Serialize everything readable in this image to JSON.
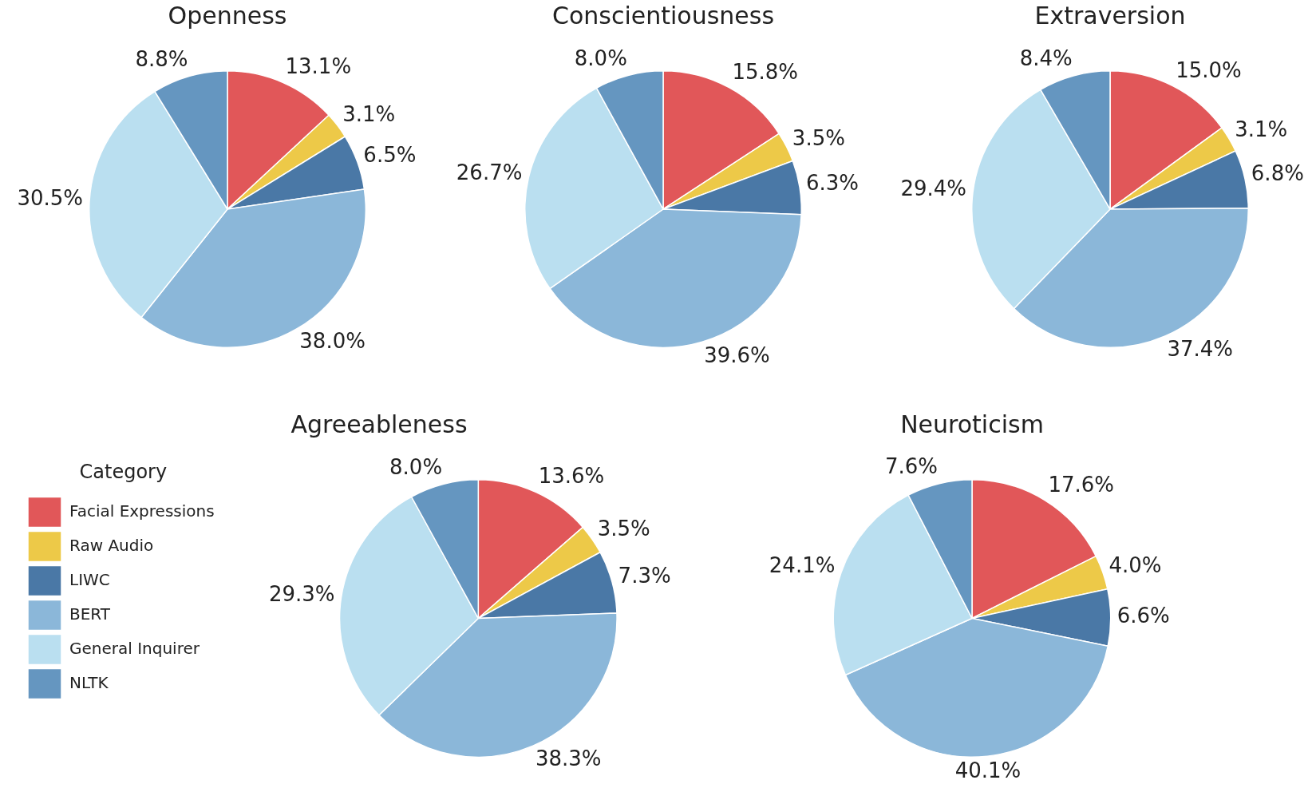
{
  "chart_data": [
    {
      "type": "pie",
      "title": "Openness",
      "values": [
        13.1,
        3.1,
        6.5,
        38.0,
        30.5,
        8.8
      ],
      "value_labels": [
        "13.1%",
        "3.1%",
        "6.5%",
        "38.0%",
        "30.5%",
        "8.8%"
      ],
      "colors": [
        "#e15759",
        "#edc948",
        "#4a78a6",
        "#8bb7d9",
        "#badff0",
        "#6596c0"
      ],
      "legend": false
    },
    {
      "type": "pie",
      "title": "Conscientiousness",
      "values": [
        15.8,
        3.5,
        6.3,
        39.6,
        26.7,
        8.0
      ],
      "value_labels": [
        "15.8%",
        "3.5%",
        "6.3%",
        "39.6%",
        "26.7%",
        "8.0%"
      ],
      "colors": [
        "#e15759",
        "#edc948",
        "#4a78a6",
        "#8bb7d9",
        "#badff0",
        "#6596c0"
      ],
      "legend": false
    },
    {
      "type": "pie",
      "title": "Extraversion",
      "values": [
        15.0,
        3.1,
        6.8,
        37.4,
        29.4,
        8.4
      ],
      "value_labels": [
        "15.0%",
        "3.1%",
        "6.8%",
        "37.4%",
        "29.4%",
        "8.4%"
      ],
      "colors": [
        "#e15759",
        "#edc948",
        "#4a78a6",
        "#8bb7d9",
        "#badff0",
        "#6596c0"
      ],
      "legend": false
    },
    {
      "type": "pie",
      "title": "Agreeableness",
      "categories": [
        "Facial Expressions",
        "Raw Audio",
        "LIWC",
        "BERT",
        "General Inquirer",
        "NLTK"
      ],
      "values": [
        13.6,
        3.5,
        7.3,
        38.3,
        29.3,
        8.0
      ],
      "value_labels": [
        "13.6%",
        "3.5%",
        "7.3%",
        "38.3%",
        "29.3%",
        "8.0%"
      ],
      "colors": [
        "#e15759",
        "#edc948",
        "#4a78a6",
        "#8bb7d9",
        "#badff0",
        "#6596c0"
      ],
      "legend": "left",
      "legend_title": "Category"
    },
    {
      "type": "pie",
      "title": "Neuroticism",
      "values": [
        17.6,
        4.0,
        6.6,
        40.1,
        24.1,
        7.6
      ],
      "value_labels": [
        "17.6%",
        "4.0%",
        "6.6%",
        "40.1%",
        "24.1%",
        "7.6%"
      ],
      "colors": [
        "#e15759",
        "#edc948",
        "#4a78a6",
        "#8bb7d9",
        "#badff0",
        "#6596c0"
      ],
      "legend": false
    }
  ]
}
